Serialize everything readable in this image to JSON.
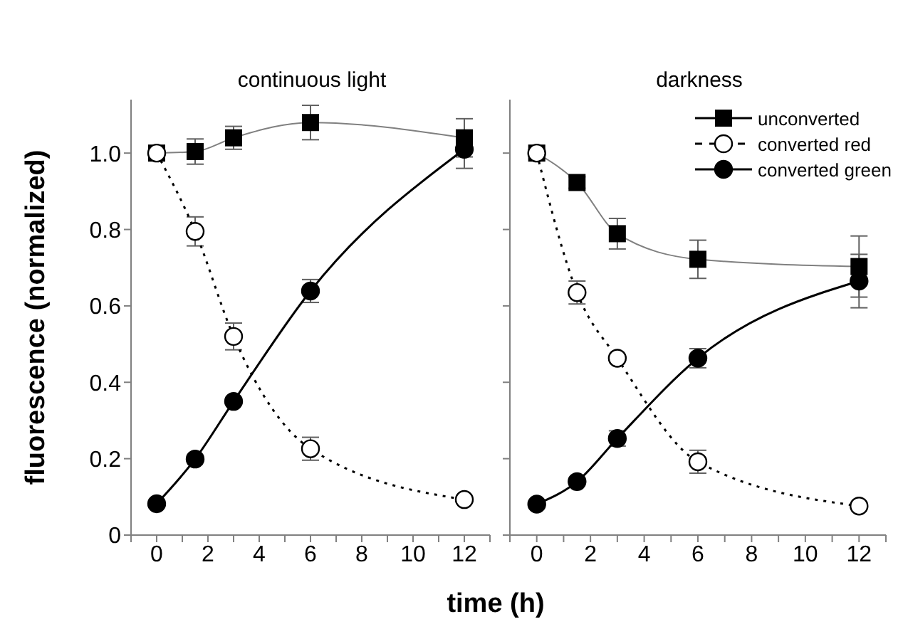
{
  "chart_data": [
    {
      "type": "line",
      "title": "continuous light",
      "xlabel": "time (h)",
      "ylabel": "fluorescence (normalized)",
      "x": [
        0,
        1.5,
        3,
        6,
        12
      ],
      "xlim": [
        -1,
        13
      ],
      "xticks": [
        {
          "value": -1,
          "label": null
        },
        0,
        {
          "value": 1,
          "label": null
        },
        2,
        {
          "value": 3,
          "label": null
        },
        4,
        {
          "value": 5,
          "label": null
        },
        6,
        {
          "value": 7,
          "label": null
        },
        8,
        {
          "value": 9,
          "label": null
        },
        10,
        {
          "value": 11,
          "label": null
        },
        12,
        {
          "value": 13,
          "label": null
        }
      ],
      "ylim": [
        0,
        1.14
      ],
      "yticks": [
        0,
        0.2,
        0.4,
        0.6,
        0.8,
        {
          "value": 1,
          "label": "1.0"
        }
      ],
      "legend": false,
      "series": [
        {
          "color": "#000000",
          "marker": "square",
          "line_style": "solid",
          "values": [
            1.0,
            1.004,
            1.04,
            1.08,
            1.04
          ],
          "errors": [
            null,
            0.033,
            0.03,
            0.045,
            0.05
          ]
        },
        {
          "color": "#000000",
          "marker": "circle",
          "line_style": "dotted",
          "values": [
            1.0,
            0.795,
            0.52,
            0.226,
            0.093
          ],
          "errors": [
            null,
            0.038,
            0.035,
            0.03,
            null
          ]
        },
        {
          "color": "#000000",
          "marker": "circle",
          "line_style": "solid",
          "values": [
            0.082,
            0.199,
            0.35,
            0.639,
            1.01
          ],
          "errors": [
            null,
            null,
            null,
            0.03,
            0.05
          ]
        }
      ]
    },
    {
      "type": "line",
      "title": "darkness",
      "x": [
        0,
        1.5,
        3,
        6,
        12
      ],
      "xlim": [
        -1,
        13
      ],
      "xticks": [
        {
          "value": -1,
          "label": null
        },
        0,
        {
          "value": 1,
          "label": null
        },
        2,
        {
          "value": 3,
          "label": null
        },
        4,
        {
          "value": 5,
          "label": null
        },
        6,
        {
          "value": 7,
          "label": null
        },
        8,
        {
          "value": 9,
          "label": null
        },
        10,
        {
          "value": 11,
          "label": null
        },
        12,
        {
          "value": 13,
          "label": null
        }
      ],
      "ylim": [
        0,
        1.14
      ],
      "yticks": [
        0,
        0.2,
        0.4,
        0.6,
        0.8,
        1
      ],
      "tick_labels": "x",
      "legend": "top right",
      "series": [
        {
          "name": "unconverted",
          "color": "#000000",
          "marker": "square",
          "line_style": "solid",
          "values": [
            1.0,
            0.923,
            0.789,
            0.722,
            0.703
          ],
          "errors": [
            null,
            0.015,
            0.04,
            0.05,
            0.08
          ]
        },
        {
          "name": "converted red",
          "color": "#000000",
          "marker": "circle",
          "line_style": "dotted",
          "values": [
            1.0,
            0.635,
            0.463,
            0.192,
            0.076
          ],
          "errors": [
            null,
            0.03,
            null,
            0.03,
            null
          ]
        },
        {
          "name": "converted green",
          "color": "#000000",
          "marker": "circle",
          "line_style": "solid",
          "values": [
            0.081,
            0.14,
            0.253,
            0.463,
            0.665
          ],
          "errors": [
            null,
            null,
            0.02,
            0.025,
            0.07
          ]
        }
      ]
    }
  ]
}
